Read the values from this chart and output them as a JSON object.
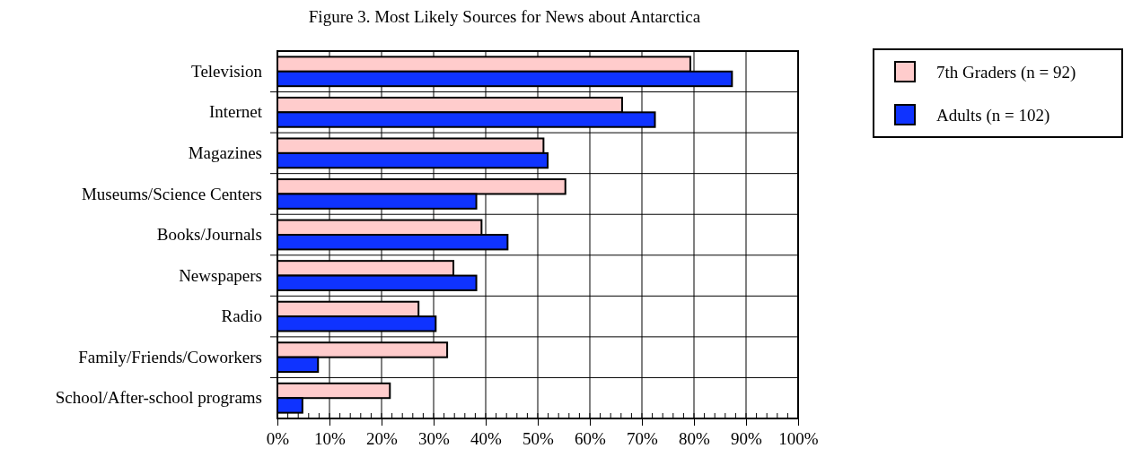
{
  "chart_data": {
    "type": "bar",
    "orientation": "horizontal",
    "title": "Figure 3.  Most Likely Sources for News about Antarctica",
    "categories": [
      "Television",
      "Internet",
      "Magazines",
      "Museums/Science Centers",
      "Books/Journals",
      "Newspapers",
      "Radio",
      "Family/Friends/Coworkers",
      "School/After-school programs"
    ],
    "series": [
      {
        "name": "7th Graders (n = 92)",
        "color": "#ffcccc",
        "values": [
          79.3,
          66.2,
          51.1,
          55.3,
          39.2,
          33.8,
          27.1,
          32.6,
          21.6
        ]
      },
      {
        "name": "Adults (n = 102)",
        "color": "#0f33ff",
        "values": [
          87.3,
          72.5,
          51.9,
          38.2,
          44.2,
          38.2,
          30.4,
          7.8,
          4.8
        ]
      }
    ],
    "xlim": [
      0,
      100
    ],
    "xticks": [
      {
        "value": 0,
        "label": "0%"
      },
      {
        "value": 10,
        "label": "10%"
      },
      {
        "value": 20,
        "label": "20%"
      },
      {
        "value": 30,
        "label": "30%"
      },
      {
        "value": 40,
        "label": "40%"
      },
      {
        "value": 50,
        "label": "50%"
      },
      {
        "value": 60,
        "label": "60%"
      },
      {
        "value": 70,
        "label": "70%"
      },
      {
        "value": 80,
        "label": "80%"
      },
      {
        "value": 90,
        "label": "90%"
      },
      {
        "value": 100,
        "label": "100%"
      }
    ],
    "grid": true,
    "legend": "top right"
  }
}
